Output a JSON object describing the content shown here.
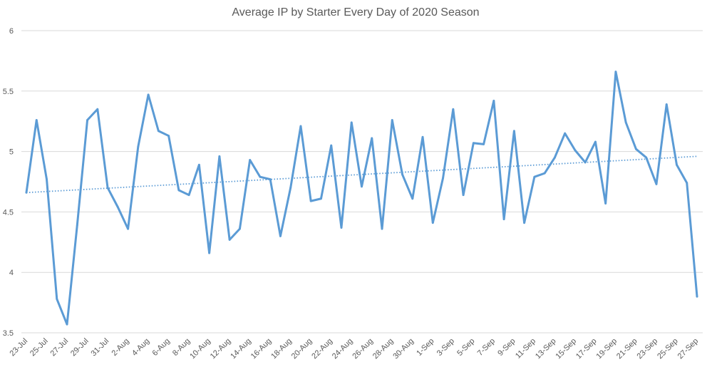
{
  "chart_data": {
    "type": "line",
    "title": "Average IP by Starter Every Day of 2020 Season",
    "xlabel": "",
    "ylabel": "",
    "ylim": [
      3.5,
      6
    ],
    "yticks": [
      "3.5",
      "4",
      "4.5",
      "5",
      "5.5",
      "6"
    ],
    "grid": true,
    "legend": "none",
    "line_color": "#5b9bd5",
    "trend_color": "#5b9bd5",
    "categories": [
      "23-Jul",
      "24-Jul",
      "25-Jul",
      "26-Jul",
      "27-Jul",
      "28-Jul",
      "29-Jul",
      "30-Jul",
      "31-Jul",
      "1-Aug",
      "2-Aug",
      "3-Aug",
      "4-Aug",
      "5-Aug",
      "6-Aug",
      "7-Aug",
      "8-Aug",
      "9-Aug",
      "10-Aug",
      "11-Aug",
      "12-Aug",
      "13-Aug",
      "14-Aug",
      "15-Aug",
      "16-Aug",
      "17-Aug",
      "18-Aug",
      "19-Aug",
      "20-Aug",
      "21-Aug",
      "22-Aug",
      "23-Aug",
      "24-Aug",
      "25-Aug",
      "26-Aug",
      "27-Aug",
      "28-Aug",
      "29-Aug",
      "30-Aug",
      "31-Aug",
      "1-Sep",
      "2-Sep",
      "3-Sep",
      "4-Sep",
      "5-Sep",
      "6-Sep",
      "7-Sep",
      "8-Sep",
      "9-Sep",
      "10-Sep",
      "11-Sep",
      "12-Sep",
      "13-Sep",
      "14-Sep",
      "15-Sep",
      "16-Sep",
      "17-Sep",
      "18-Sep",
      "19-Sep",
      "20-Sep",
      "21-Sep",
      "22-Sep",
      "23-Sep",
      "24-Sep",
      "25-Sep",
      "26-Sep",
      "27-Sep"
    ],
    "xtick_labels": [
      "23-Jul",
      "25-Jul",
      "27-Jul",
      "29-Jul",
      "31-Jul",
      "2-Aug",
      "4-Aug",
      "6-Aug",
      "8-Aug",
      "10-Aug",
      "12-Aug",
      "14-Aug",
      "16-Aug",
      "18-Aug",
      "20-Aug",
      "22-Aug",
      "24-Aug",
      "26-Aug",
      "28-Aug",
      "30-Aug",
      "1-Sep",
      "3-Sep",
      "5-Sep",
      "7-Sep",
      "9-Sep",
      "11-Sep",
      "13-Sep",
      "15-Sep",
      "17-Sep",
      "19-Sep",
      "21-Sep",
      "23-Sep",
      "25-Sep",
      "27-Sep"
    ],
    "series": [
      {
        "values": [
          4.66,
          5.26,
          4.77,
          3.78,
          3.57,
          4.39,
          5.26,
          5.35,
          4.7,
          4.54,
          4.36,
          5.04,
          5.47,
          5.17,
          5.13,
          4.68,
          4.64,
          4.89,
          4.16,
          4.96,
          4.27,
          4.36,
          4.93,
          4.79,
          4.77,
          4.3,
          4.7,
          5.21,
          4.59,
          4.61,
          5.05,
          4.37,
          5.24,
          4.71,
          5.11,
          4.36,
          5.26,
          4.81,
          4.61,
          5.12,
          4.41,
          4.78,
          5.35,
          4.64,
          5.07,
          5.06,
          5.42,
          4.44,
          5.17,
          4.41,
          4.79,
          4.82,
          4.95,
          5.15,
          5.01,
          4.91,
          5.08,
          4.57,
          5.66,
          5.24,
          5.02,
          4.95,
          4.73,
          5.39,
          4.89,
          4.74,
          3.8
        ]
      }
    ],
    "trendline": {
      "type": "linear",
      "start": 4.66,
      "end": 4.96
    }
  }
}
